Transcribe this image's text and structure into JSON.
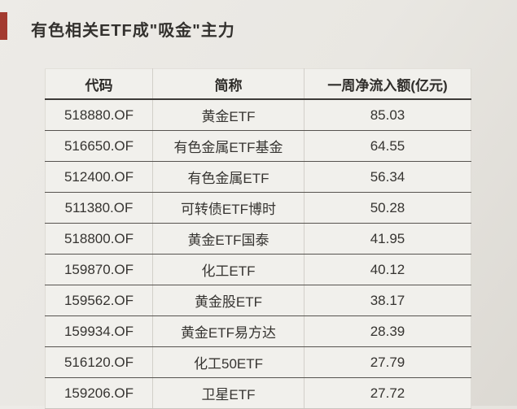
{
  "title": {
    "text": "有色相关ETF成\"吸金\"主力"
  },
  "table": {
    "headers": [
      "代码",
      "简称",
      "一周净流入额(亿元)"
    ],
    "rows": [
      {
        "code": "518880.OF",
        "name": "黄金ETF",
        "inflow": "85.03"
      },
      {
        "code": "516650.OF",
        "name": "有色金属ETF基金",
        "inflow": "64.55"
      },
      {
        "code": "512400.OF",
        "name": "有色金属ETF",
        "inflow": "56.34"
      },
      {
        "code": "511380.OF",
        "name": "可转债ETF博时",
        "inflow": "50.28"
      },
      {
        "code": "518800.OF",
        "name": "黄金ETF国泰",
        "inflow": "41.95"
      },
      {
        "code": "159870.OF",
        "name": "化工ETF",
        "inflow": "40.12"
      },
      {
        "code": "159562.OF",
        "name": "黄金股ETF",
        "inflow": "38.17"
      },
      {
        "code": "159934.OF",
        "name": "黄金ETF易方达",
        "inflow": "28.39"
      },
      {
        "code": "516120.OF",
        "name": "化工50ETF",
        "inflow": "27.79"
      },
      {
        "code": "159206.OF",
        "name": "卫星ETF",
        "inflow": "27.72"
      }
    ]
  },
  "chart_data": {
    "type": "table",
    "title": "有色相关ETF成\"吸金\"主力",
    "columns": [
      "代码",
      "简称",
      "一周净流入额(亿元)"
    ],
    "rows": [
      [
        "518880.OF",
        "黄金ETF",
        85.03
      ],
      [
        "516650.OF",
        "有色金属ETF基金",
        64.55
      ],
      [
        "512400.OF",
        "有色金属ETF",
        56.34
      ],
      [
        "511380.OF",
        "可转债ETF博时",
        50.28
      ],
      [
        "518800.OF",
        "黄金ETF国泰",
        41.95
      ],
      [
        "159870.OF",
        "化工ETF",
        40.12
      ],
      [
        "159562.OF",
        "黄金股ETF",
        38.17
      ],
      [
        "159934.OF",
        "黄金ETF易方达",
        28.39
      ],
      [
        "516120.OF",
        "化工50ETF",
        27.79
      ],
      [
        "159206.OF",
        "卫星ETF",
        27.72
      ]
    ]
  },
  "colors": {
    "accent_red": "#a33a30",
    "page_background": "#e9e7e2",
    "cell_background": "#f1f0ec",
    "text": "#363431"
  }
}
